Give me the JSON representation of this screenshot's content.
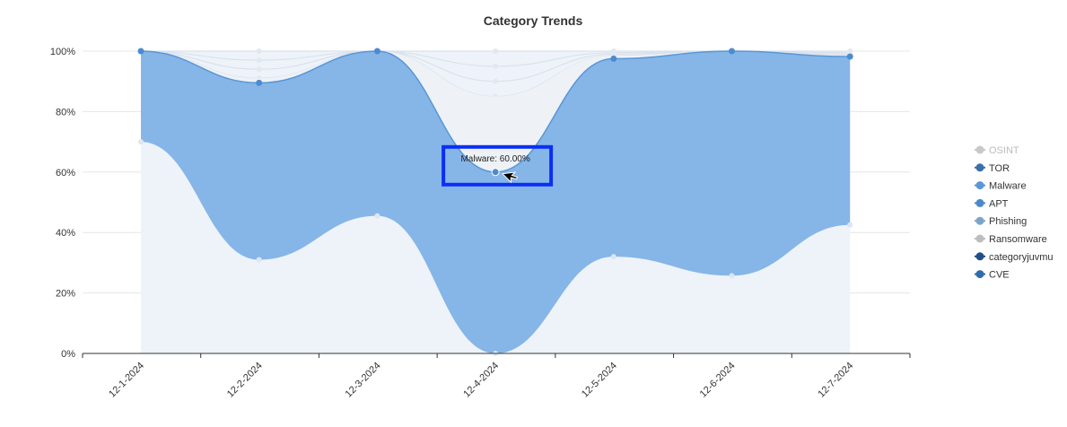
{
  "chart_data": {
    "type": "area",
    "stacked": true,
    "normalized_percent": true,
    "title": "Category Trends",
    "categories": [
      "12-1-2024",
      "12-2-2024",
      "12-3-2024",
      "12-4-2024",
      "12-5-2024",
      "12-6-2024",
      "12-7-2024"
    ],
    "yticks": [
      "0%",
      "20%",
      "40%",
      "60%",
      "80%",
      "100%"
    ],
    "ylim": [
      0,
      100
    ],
    "grid": true,
    "legend_position": "right",
    "active_series": "Malware",
    "series_cumulative_top": {
      "Malware": [
        100,
        89.5,
        100,
        60,
        97.5,
        100,
        98.2
      ]
    },
    "series_lower_edge": [
      70,
      31,
      45.5,
      0,
      32,
      25.7,
      42.5
    ],
    "faint_series_levels": [
      [
        100,
        100,
        100,
        100,
        100,
        100,
        100
      ],
      [
        100,
        97,
        100,
        95,
        99.5,
        100,
        99.5
      ],
      [
        100,
        94,
        100,
        90,
        99,
        100,
        99
      ],
      [
        100,
        91,
        100,
        85,
        98.5,
        100,
        98.6
      ]
    ],
    "legend": [
      {
        "name": "OSINT",
        "color": "#c8c8c8",
        "muted": true
      },
      {
        "name": "TOR",
        "color": "#3a6fa8",
        "muted": false
      },
      {
        "name": "Malware",
        "color": "#5b97d8",
        "muted": false
      },
      {
        "name": "APT",
        "color": "#4a89cc",
        "muted": false
      },
      {
        "name": "Phishing",
        "color": "#7ea4c8",
        "muted": false
      },
      {
        "name": "Ransomware",
        "color": "#bdbdbd",
        "muted": false
      },
      {
        "name": "categoryjuvmu",
        "color": "#1f4f86",
        "muted": false
      },
      {
        "name": "CVE",
        "color": "#2e6cab",
        "muted": false
      }
    ],
    "tooltip": {
      "text": "Malware: 60.00%",
      "category": "12-4-2024",
      "value": 60
    },
    "colors": {
      "fill_active": "#86b5e8",
      "stroke_active": "#5a96d6",
      "point_active": "#4d8bd0",
      "fill_background": "#eef3f9",
      "highlight_box": "#0b2ff5"
    }
  }
}
